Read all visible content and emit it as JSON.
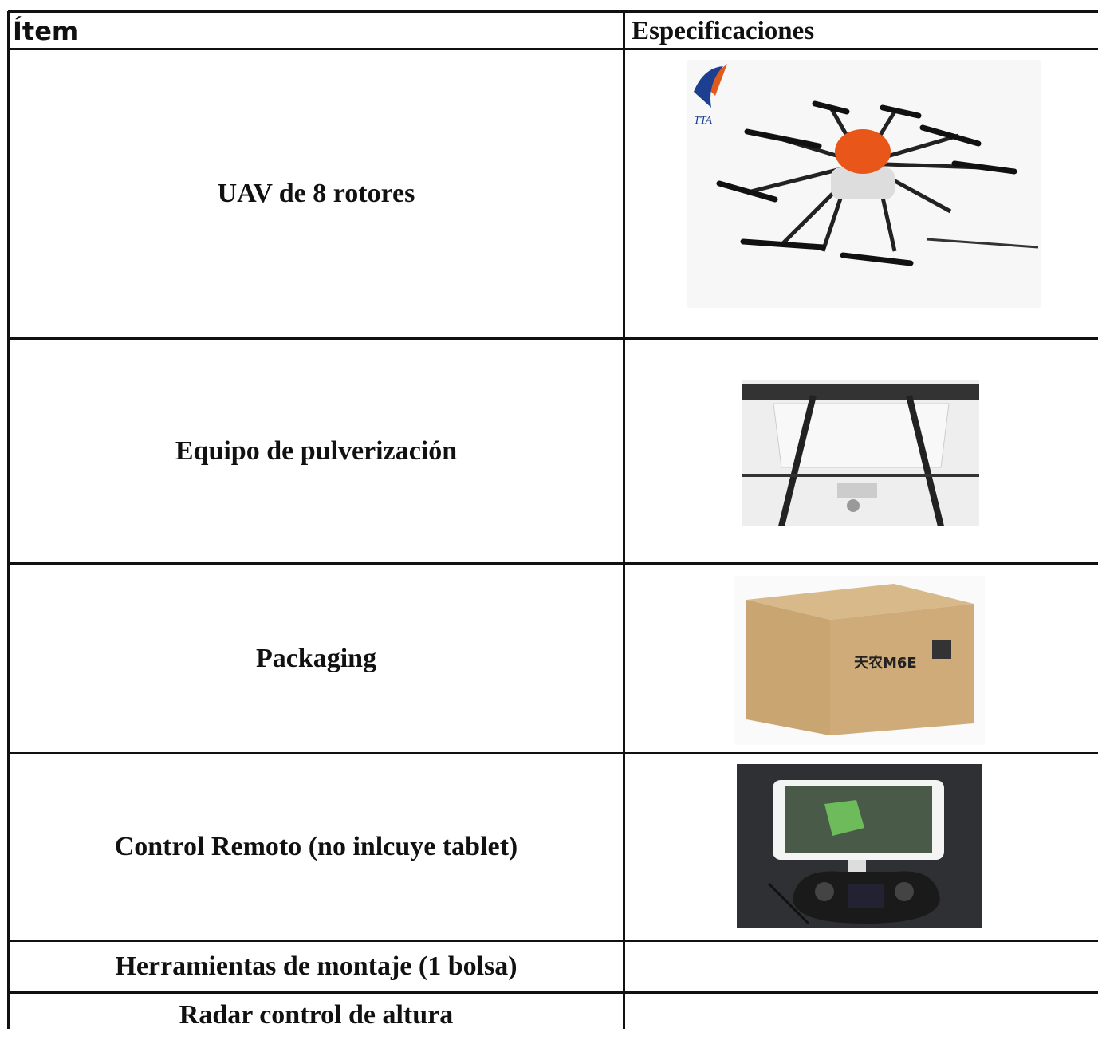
{
  "table": {
    "header": [
      "Ítem",
      "Especificaciones"
    ],
    "rows": [
      [
        "UAV de 8 rotores"
      ],
      [
        "Equipo de pulverización"
      ],
      [
        "Packaging"
      ],
      [
        "Control Remoto (no inlcuye tablet)"
      ],
      [
        "Herramientas de montaje (1 bolsa)"
      ],
      [
        "Radar control de altura"
      ]
    ]
  },
  "logo": "TTA",
  "box_label": "天农M6E"
}
